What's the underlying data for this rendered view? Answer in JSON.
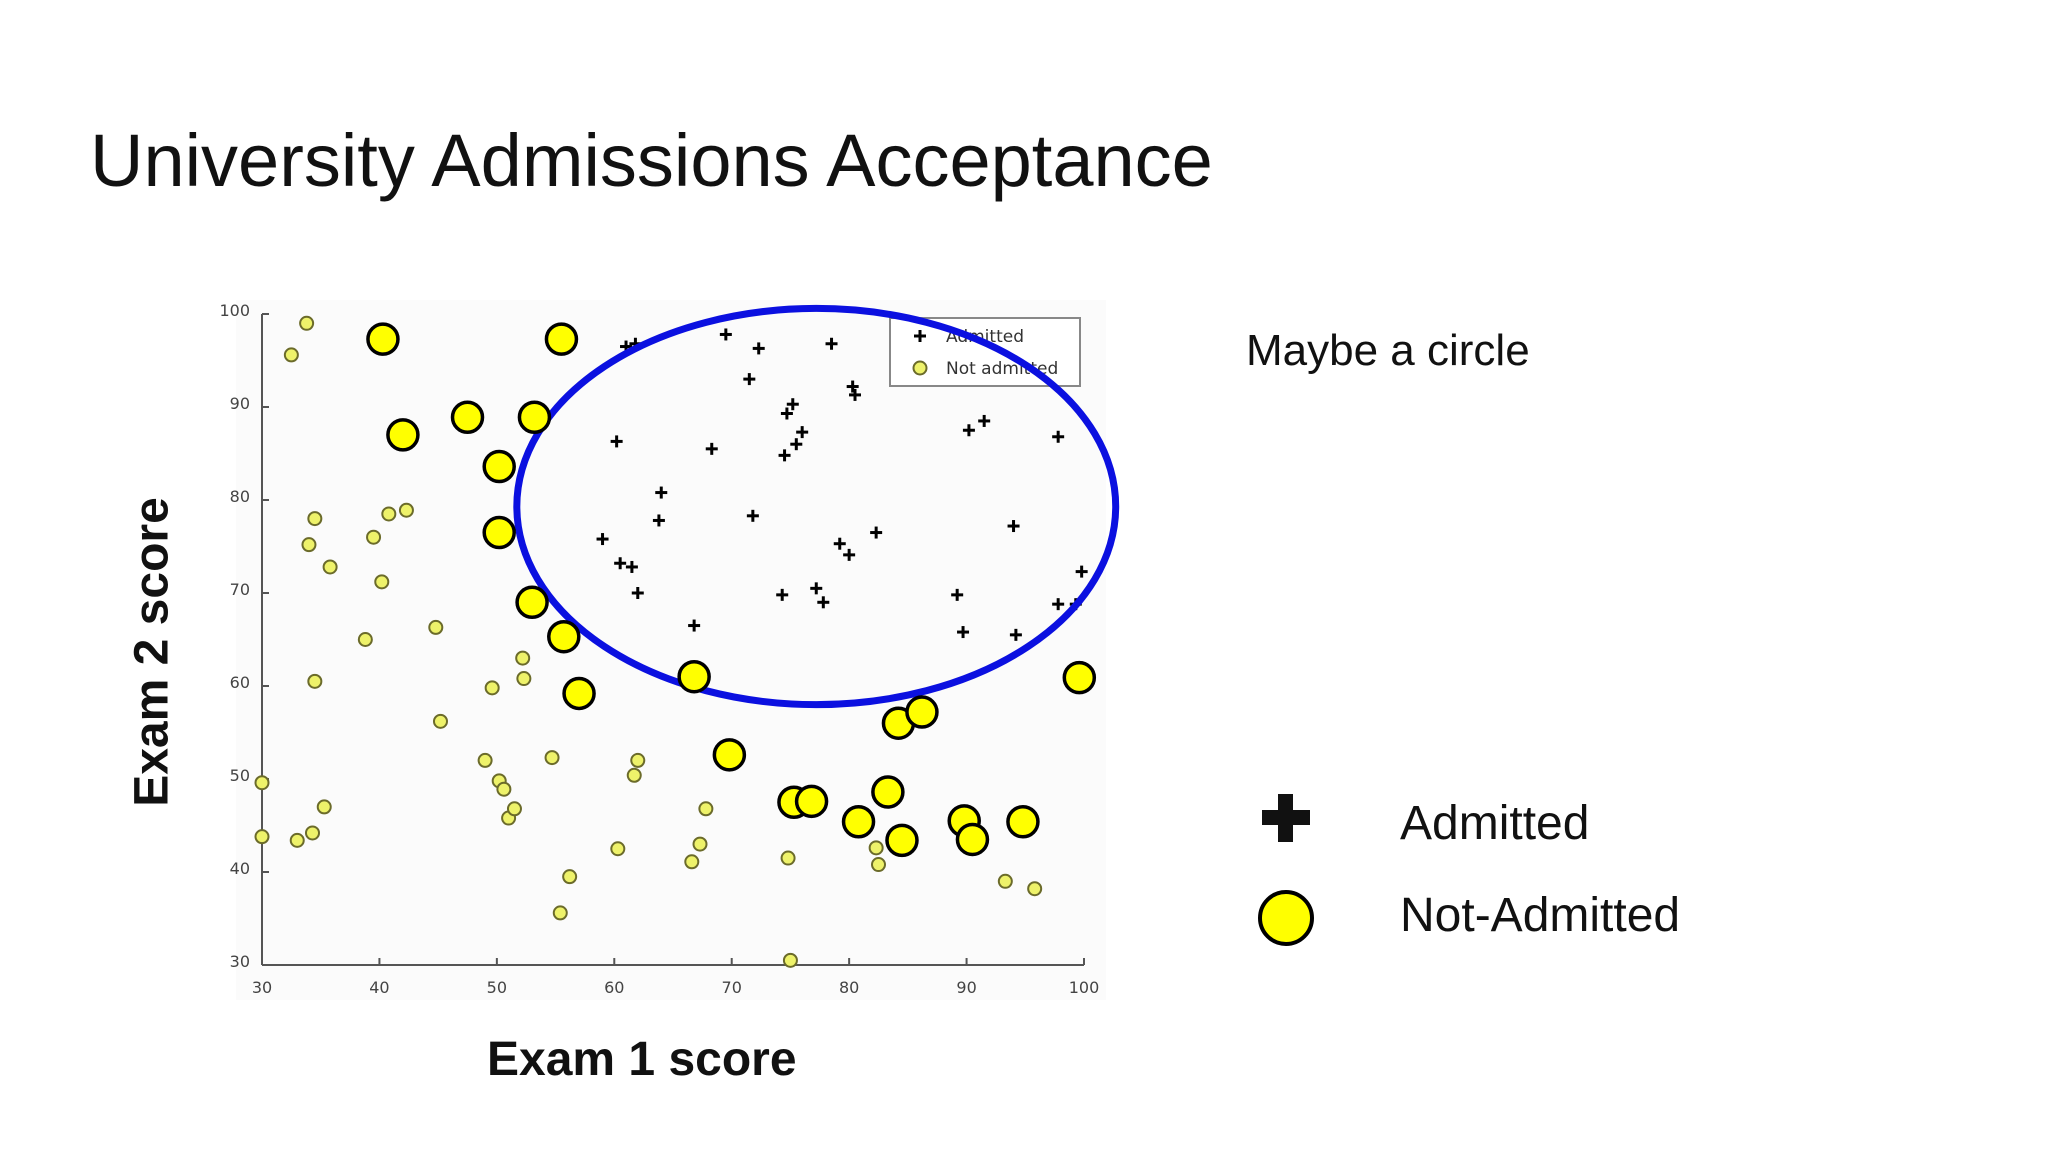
{
  "slide": {
    "title": "University Admissions Acceptance",
    "note": "Maybe a circle"
  },
  "key": {
    "admitted_label": "Admitted",
    "not_admitted_label": "Not-Admitted"
  },
  "colors": {
    "admitted_marker": "#000000",
    "not_admitted_fill": "#ffff00",
    "not_admitted_stroke": "#000000",
    "circle_overlay": "#0b10e0",
    "axis": "#555555"
  },
  "chart_data": {
    "type": "scatter",
    "xlabel": "Exam 1 score",
    "ylabel": "Exam 2 score",
    "xlim": [
      30,
      100
    ],
    "ylim": [
      30,
      100
    ],
    "x_ticks": [
      30,
      40,
      50,
      60,
      70,
      80,
      90,
      100
    ],
    "y_ticks": [
      30,
      40,
      50,
      60,
      70,
      80,
      90,
      100
    ],
    "grid": false,
    "legend": {
      "placement": "top-right",
      "entries": [
        "Admitted",
        "Not admitted"
      ]
    },
    "series": [
      {
        "name": "Admitted",
        "marker": "plus",
        "points": [
          [
            61,
            96.5
          ],
          [
            61.8,
            96.8
          ],
          [
            69.5,
            97.8
          ],
          [
            71.5,
            93
          ],
          [
            72.3,
            96.3
          ],
          [
            78.5,
            96.8
          ],
          [
            80.3,
            92.2
          ],
          [
            80.5,
            91.3
          ],
          [
            75.2,
            90.3
          ],
          [
            74.7,
            89.3
          ],
          [
            76,
            87.3
          ],
          [
            60.2,
            86.3
          ],
          [
            68.3,
            85.5
          ],
          [
            75.5,
            86
          ],
          [
            74.5,
            84.8
          ],
          [
            64,
            80.8
          ],
          [
            71.8,
            78.3
          ],
          [
            63.8,
            77.8
          ],
          [
            59,
            75.8
          ],
          [
            79.2,
            75.3
          ],
          [
            80,
            74.1
          ],
          [
            82.3,
            76.5
          ],
          [
            60.5,
            73.2
          ],
          [
            61.5,
            72.8
          ],
          [
            62,
            70
          ],
          [
            74.3,
            69.8
          ],
          [
            77.2,
            70.5
          ],
          [
            77.8,
            69
          ],
          [
            66.8,
            66.5
          ],
          [
            89.2,
            69.8
          ],
          [
            89.7,
            65.8
          ],
          [
            94.2,
            65.5
          ],
          [
            94,
            77.2
          ],
          [
            90.2,
            87.5
          ],
          [
            91.5,
            88.5
          ],
          [
            97.8,
            86.8
          ],
          [
            97.8,
            68.8
          ],
          [
            99.8,
            72.3
          ],
          [
            99.3,
            68.8
          ]
        ]
      },
      {
        "name": "Not admitted",
        "marker": "circle",
        "points": [
          [
            33.8,
            99
          ],
          [
            32.5,
            95.6
          ],
          [
            40.8,
            78.5
          ],
          [
            42.3,
            78.9
          ],
          [
            34.5,
            78
          ],
          [
            34,
            75.2
          ],
          [
            35.8,
            72.8
          ],
          [
            39.5,
            76
          ],
          [
            40.2,
            71.2
          ],
          [
            38.8,
            65
          ],
          [
            44.8,
            66.3
          ],
          [
            34.5,
            60.5
          ],
          [
            45.2,
            56.2
          ],
          [
            49.6,
            59.8
          ],
          [
            52.2,
            63
          ],
          [
            52.3,
            60.8
          ],
          [
            30,
            49.6
          ],
          [
            30,
            43.8
          ],
          [
            33,
            43.4
          ],
          [
            34.3,
            44.2
          ],
          [
            35.3,
            47
          ],
          [
            49,
            52
          ],
          [
            50.2,
            49.8
          ],
          [
            50.6,
            48.9
          ],
          [
            51,
            45.8
          ],
          [
            51.5,
            46.8
          ],
          [
            54.7,
            52.3
          ],
          [
            56.2,
            39.5
          ],
          [
            55.4,
            35.6
          ],
          [
            60.3,
            42.5
          ],
          [
            61.7,
            50.4
          ],
          [
            62,
            52
          ],
          [
            67.3,
            43
          ],
          [
            67.8,
            46.8
          ],
          [
            66.6,
            41.1
          ],
          [
            74.8,
            41.5
          ],
          [
            75,
            30.5
          ],
          [
            82.5,
            40.8
          ],
          [
            82.3,
            42.6
          ],
          [
            93.3,
            39
          ],
          [
            95.8,
            38.2
          ]
        ]
      },
      {
        "name": "",
        "marker": "large-circle",
        "points": [
          [
            40.3,
            97.3
          ],
          [
            55.5,
            97.3
          ],
          [
            42,
            87
          ],
          [
            47.5,
            88.9
          ],
          [
            53.2,
            88.9
          ],
          [
            50.2,
            83.6
          ],
          [
            50.2,
            76.5
          ],
          [
            53,
            69
          ],
          [
            55.7,
            65.3
          ],
          [
            57,
            59.2
          ],
          [
            66.8,
            61
          ],
          [
            69.8,
            52.6
          ],
          [
            75.3,
            47.5
          ],
          [
            76.8,
            47.6
          ],
          [
            80.8,
            45.4
          ],
          [
            83.3,
            48.6
          ],
          [
            84.5,
            43.4
          ],
          [
            84.2,
            56
          ],
          [
            86.2,
            57.2
          ],
          [
            89.8,
            45.5
          ],
          [
            90.5,
            43.5
          ],
          [
            94.8,
            45.4
          ],
          [
            99.6,
            60.9
          ]
        ]
      }
    ],
    "overlay": {
      "shape": "ellipse",
      "center": [
        77.2,
        79.3
      ],
      "radius_x": 25.5,
      "radius_y": 21.3
    }
  }
}
